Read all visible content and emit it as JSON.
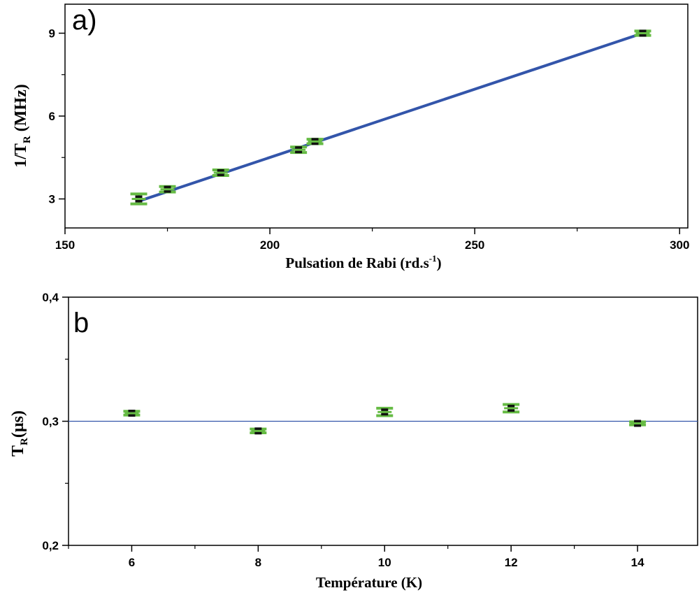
{
  "chart_data": [
    {
      "type": "scatter",
      "panel_label": "a)",
      "xlabel": "Pulsation de Rabi (rd.s",
      "xlabel_sup": "-1",
      "xlabel_end": ")",
      "ylabel_main": "1/T",
      "ylabel_sub": "R",
      "ylabel_unit": " (MHz)",
      "xlim": [
        150,
        302
      ],
      "ylim": [
        1.95,
        10.05
      ],
      "xticks": [
        150,
        200,
        250,
        300
      ],
      "yticks": [
        3,
        6,
        9
      ],
      "series": [
        {
          "x": [
            168,
            175,
            188,
            207,
            211,
            291
          ],
          "y": [
            3.0,
            3.35,
            3.95,
            4.78,
            5.08,
            9.0
          ],
          "yerr": [
            0.18,
            0.1,
            0.1,
            0.1,
            0.08,
            0.08
          ]
        }
      ],
      "fit_line": {
        "x": [
          168,
          291
        ],
        "y": [
          2.92,
          9.0
        ]
      },
      "colors": {
        "marker": "#111111",
        "errorbar": "#66bb44",
        "fit": "#3355aa"
      }
    },
    {
      "type": "scatter",
      "panel_label": "b",
      "xlabel": "Température (K)",
      "ylabel_main": "T",
      "ylabel_sub": "R",
      "ylabel_unit": "(µs)",
      "xlim": [
        5,
        14.95
      ],
      "ylim": [
        0.2,
        0.4
      ],
      "xticks": [
        6,
        8,
        10,
        12,
        14
      ],
      "yticks": [
        0.2,
        0.3,
        0.4
      ],
      "ytick_labels": [
        "0,2",
        "0,3",
        "0,4"
      ],
      "series": [
        {
          "x": [
            6,
            8,
            10,
            12,
            14
          ],
          "y": [
            0.3065,
            0.2922,
            0.3075,
            0.3105,
            0.2983
          ],
          "yerr": [
            0.0015,
            0.0015,
            0.003,
            0.003,
            0.0012
          ]
        }
      ],
      "ref_line": {
        "y": 0.3
      },
      "colors": {
        "marker": "#111111",
        "errorbar": "#66bb44",
        "ref": "#3355aa"
      }
    }
  ]
}
